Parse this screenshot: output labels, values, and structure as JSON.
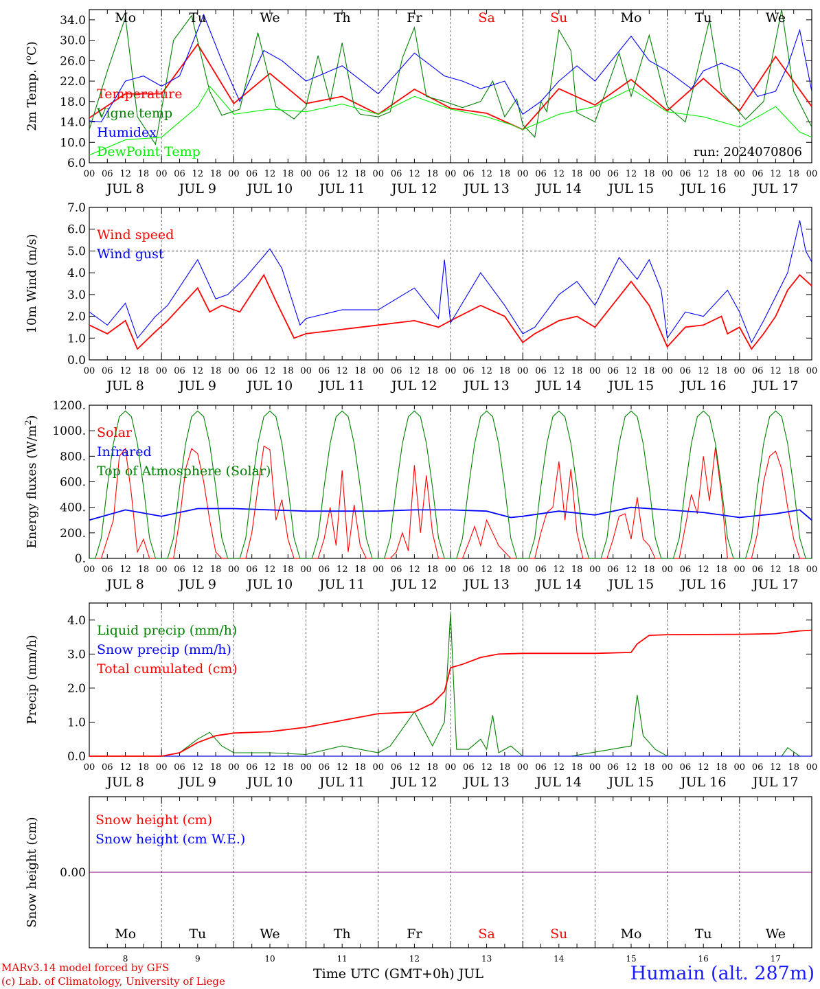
{
  "chart_data": [
    {
      "type": "line",
      "ylabel_text": "2m Temp. (",
      "ylabel_unit": "o",
      "ylabel_tail": "C)",
      "ylim": [
        6,
        36
      ],
      "yticks": [
        "6.0",
        "10.0",
        "14.0",
        "18.0",
        "22.0",
        "26.0",
        "30.0",
        "34.0"
      ],
      "annotation": "run: 2024070806",
      "weekday_row": "top",
      "series": [
        {
          "name": "Temperature",
          "color": "#ff0000",
          "x": [
            0,
            12,
            24,
            36,
            48,
            60,
            72,
            84,
            96,
            108,
            120,
            132,
            144,
            156,
            168,
            180,
            192,
            204,
            216,
            228,
            240
          ],
          "y": [
            14.8,
            19.5,
            19.5,
            29.2,
            17.6,
            23.5,
            17.6,
            19.0,
            15.5,
            20.4,
            16.7,
            15.7,
            12.5,
            20.5,
            17.3,
            22.3,
            16.2,
            22.5,
            16.2,
            26.8,
            17.0
          ]
        },
        {
          "name": "Vigne temp",
          "color": "#008000",
          "x": [
            0,
            6,
            12,
            16,
            22,
            28,
            34,
            40,
            44,
            50,
            56,
            62,
            68,
            72,
            76,
            80,
            84,
            88,
            90,
            96,
            100,
            104,
            108,
            112,
            118,
            124,
            130,
            134,
            138,
            142,
            144,
            148,
            150,
            152,
            156,
            160,
            162,
            168,
            176,
            180,
            186,
            192,
            198,
            206,
            210,
            218,
            224,
            230,
            234,
            240
          ],
          "y": [
            12.5,
            24.0,
            34.5,
            15.0,
            9.6,
            30.0,
            34.8,
            20.0,
            15.3,
            16.5,
            31.5,
            17.0,
            14.6,
            17.0,
            27.0,
            18.0,
            29.5,
            17.0,
            15.5,
            15.0,
            16.0,
            26.5,
            32.5,
            19.0,
            18.0,
            16.8,
            18.0,
            22.0,
            15.0,
            18.5,
            13.5,
            11.0,
            18.0,
            16.0,
            32.0,
            28.0,
            15.8,
            14.0,
            27.5,
            19.0,
            31.0,
            17.0,
            14.0,
            34.0,
            20.0,
            14.5,
            18.0,
            36.5,
            20.0,
            13.0
          ]
        },
        {
          "name": "Humidex",
          "color": "#0000ff",
          "x": [
            0,
            4,
            12,
            18,
            24,
            30,
            38,
            44,
            50,
            58,
            64,
            72,
            84,
            96,
            108,
            118,
            124,
            130,
            138,
            144,
            150,
            156,
            162,
            168,
            180,
            186,
            192,
            200,
            204,
            210,
            216,
            222,
            228,
            232,
            236,
            240
          ],
          "y": [
            14.2,
            14.0,
            22.0,
            23.0,
            21.0,
            23.0,
            35.0,
            26.0,
            18.0,
            28.0,
            26.0,
            22.0,
            25.0,
            19.5,
            27.5,
            23.0,
            22.0,
            20.5,
            22.0,
            15.5,
            18.0,
            22.0,
            25.0,
            22.0,
            30.8,
            26.0,
            24.0,
            20.5,
            24.0,
            25.5,
            24.0,
            19.0,
            20.0,
            25.0,
            32.0,
            20.0
          ]
        },
        {
          "name": "DewPoint Temp",
          "color": "#00ee00",
          "x": [
            0,
            12,
            24,
            36,
            40,
            48,
            60,
            72,
            84,
            96,
            108,
            120,
            132,
            140,
            144,
            156,
            168,
            180,
            192,
            204,
            216,
            228,
            236,
            240
          ],
          "y": [
            7.5,
            10.5,
            11.0,
            17.0,
            21.0,
            15.5,
            16.5,
            16.0,
            17.5,
            15.5,
            19.0,
            16.5,
            15.0,
            13.5,
            12.5,
            15.5,
            17.0,
            20.5,
            16.0,
            15.0,
            13.0,
            17.0,
            12.0,
            11.0
          ]
        }
      ]
    },
    {
      "type": "line",
      "ylabel": "10m Wind (m/s)",
      "ylim": [
        0,
        7
      ],
      "yticks": [
        "0.0",
        "1.0",
        "2.0",
        "3.0",
        "4.0",
        "5.0",
        "6.0",
        "7.0"
      ],
      "reference_line": 5.0,
      "series": [
        {
          "name": "Wind speed",
          "color": "#ff0000",
          "x": [
            0,
            6,
            12,
            16,
            22,
            26,
            36,
            40,
            44,
            50,
            58,
            62,
            68,
            72,
            84,
            96,
            108,
            116,
            120,
            130,
            138,
            144,
            148,
            156,
            162,
            168,
            180,
            186,
            192,
            198,
            204,
            210,
            212,
            216,
            220,
            224,
            228,
            232,
            236,
            240
          ],
          "y": [
            1.6,
            1.2,
            1.8,
            0.5,
            1.3,
            1.8,
            3.3,
            2.2,
            2.5,
            2.2,
            3.9,
            2.7,
            1.0,
            1.2,
            1.4,
            1.6,
            1.8,
            1.5,
            1.8,
            2.5,
            2.0,
            0.8,
            1.2,
            1.8,
            2.0,
            1.5,
            3.6,
            2.5,
            0.6,
            1.5,
            1.6,
            2.0,
            1.2,
            1.5,
            0.5,
            1.2,
            2.0,
            3.2,
            3.9,
            3.4
          ]
        },
        {
          "name": "Wind gust",
          "color": "#0000ff",
          "x": [
            0,
            6,
            12,
            16,
            22,
            26,
            36,
            42,
            46,
            52,
            60,
            64,
            70,
            72,
            84,
            96,
            108,
            116,
            118,
            120,
            130,
            138,
            144,
            148,
            156,
            162,
            168,
            176,
            182,
            186,
            190,
            192,
            198,
            204,
            212,
            216,
            220,
            224,
            228,
            232,
            236,
            238,
            240
          ],
          "y": [
            2.2,
            1.6,
            2.6,
            1.0,
            2.0,
            2.5,
            4.6,
            2.8,
            3.0,
            3.8,
            5.1,
            4.2,
            1.6,
            1.9,
            2.3,
            2.3,
            3.3,
            1.9,
            4.6,
            1.7,
            4.0,
            2.5,
            1.2,
            1.5,
            3.0,
            3.6,
            2.5,
            4.7,
            3.7,
            4.6,
            3.2,
            1.0,
            2.2,
            2.0,
            3.2,
            2.2,
            0.8,
            1.8,
            2.9,
            4.0,
            6.4,
            5.0,
            4.5
          ]
        }
      ]
    },
    {
      "type": "line",
      "ylabel_text": "Energy fluxes (W/m",
      "ylabel_unit": "2",
      "ylabel_tail": ")",
      "ylim": [
        0,
        1200
      ],
      "yticks": [
        "0.",
        "200.",
        "400.",
        "600.",
        "800.",
        "1000.",
        "1200."
      ],
      "series": [
        {
          "name": "Solar",
          "color": "#ff0000",
          "x": [
            0,
            4,
            8,
            10,
            12,
            14,
            16,
            18,
            20,
            24,
            28,
            30,
            32,
            34,
            36,
            38,
            40,
            42,
            44,
            48,
            52,
            54,
            56,
            58,
            60,
            62,
            64,
            66,
            68,
            72,
            76,
            78,
            80,
            82,
            84,
            86,
            88,
            90,
            92,
            96,
            100,
            102,
            104,
            106,
            108,
            110,
            112,
            114,
            116,
            120,
            124,
            126,
            128,
            130,
            132,
            134,
            136,
            138,
            140,
            144,
            148,
            150,
            152,
            154,
            156,
            158,
            160,
            162,
            164,
            168,
            172,
            174,
            176,
            178,
            180,
            182,
            184,
            186,
            188,
            192,
            196,
            198,
            200,
            202,
            204,
            206,
            208,
            210,
            212,
            216,
            220,
            222,
            224,
            226,
            228,
            230,
            232,
            234,
            236,
            240
          ],
          "y": [
            0,
            0,
            300,
            800,
            860,
            500,
            50,
            150,
            0,
            0,
            0,
            300,
            700,
            860,
            820,
            600,
            300,
            50,
            0,
            0,
            0,
            200,
            550,
            880,
            850,
            300,
            460,
            150,
            0,
            0,
            0,
            150,
            400,
            100,
            690,
            50,
            420,
            100,
            0,
            0,
            0,
            50,
            200,
            60,
            730,
            200,
            650,
            200,
            0,
            0,
            0,
            120,
            250,
            100,
            300,
            200,
            100,
            50,
            0,
            0,
            0,
            200,
            360,
            400,
            760,
            300,
            700,
            200,
            0,
            0,
            0,
            150,
            330,
            350,
            150,
            480,
            150,
            100,
            0,
            0,
            0,
            250,
            500,
            350,
            800,
            450,
            870,
            500,
            0,
            0,
            0,
            200,
            600,
            800,
            840,
            700,
            400,
            150,
            0,
            0
          ]
        },
        {
          "name": "Infrared",
          "color": "#0000ff",
          "x": [
            0,
            12,
            24,
            36,
            48,
            60,
            72,
            84,
            96,
            108,
            120,
            132,
            140,
            144,
            156,
            168,
            180,
            192,
            204,
            216,
            228,
            236,
            240
          ],
          "y": [
            300,
            380,
            330,
            390,
            390,
            380,
            370,
            370,
            370,
            380,
            380,
            370,
            320,
            330,
            370,
            340,
            400,
            380,
            360,
            320,
            350,
            380,
            300
          ]
        },
        {
          "name": "Top of Atmosphere (Solar)",
          "color": "#008000",
          "x": [
            0,
            2,
            4,
            6,
            8,
            10,
            12,
            14,
            16,
            18,
            20,
            22,
            24
          ],
          "y": [
            0,
            0,
            160,
            560,
            900,
            1110,
            1155,
            1110,
            900,
            560,
            160,
            0,
            0
          ],
          "period": 24
        }
      ]
    },
    {
      "type": "line",
      "ylabel": "Precip (mm/h)",
      "ylim": [
        0,
        4.5
      ],
      "yticks": [
        "0.0",
        "1.0",
        "2.0",
        "3.0",
        "4.0"
      ],
      "series": [
        {
          "name": "Liquid precip (mm/h)",
          "color": "#008000",
          "x": [
            0,
            24,
            30,
            36,
            40,
            44,
            48,
            60,
            72,
            84,
            96,
            100,
            108,
            114,
            118,
            120,
            122,
            126,
            130,
            132,
            134,
            136,
            140,
            144,
            160,
            180,
            182,
            184,
            188,
            192,
            230,
            232,
            236,
            240
          ],
          "y": [
            0,
            0,
            0.1,
            0.5,
            0.7,
            0.3,
            0.1,
            0.1,
            0.05,
            0.3,
            0.1,
            0.3,
            1.3,
            0.3,
            1.0,
            4.2,
            0.2,
            0.2,
            0.5,
            0.2,
            1.2,
            0.1,
            0.3,
            0,
            0,
            0.3,
            1.8,
            0.6,
            0.2,
            0,
            0,
            0.25,
            0,
            0
          ]
        },
        {
          "name": "Snow precip (mm/h)",
          "color": "#0000ff",
          "x": [
            0,
            240
          ],
          "y": [
            0,
            0
          ]
        },
        {
          "name": "Total cumulated (cm)",
          "color": "#ff0000",
          "x": [
            0,
            24,
            30,
            36,
            42,
            48,
            60,
            72,
            84,
            96,
            108,
            114,
            118,
            120,
            124,
            130,
            136,
            144,
            168,
            180,
            182,
            186,
            192,
            216,
            228,
            236,
            240
          ],
          "y": [
            0,
            0,
            0.1,
            0.4,
            0.6,
            0.68,
            0.72,
            0.85,
            1.05,
            1.25,
            1.3,
            1.55,
            1.9,
            2.6,
            2.7,
            2.9,
            3.0,
            3.02,
            3.02,
            3.05,
            3.3,
            3.55,
            3.57,
            3.58,
            3.6,
            3.68,
            3.7
          ]
        }
      ]
    },
    {
      "type": "line",
      "ylabel": "Snow height (cm)",
      "ylim": [
        -1,
        1
      ],
      "yticks": [
        "0.00"
      ],
      "weekday_row": "bottom",
      "series": [
        {
          "name": "Snow height (cm)",
          "color": "#ff0000",
          "x": [
            0,
            240
          ],
          "y": [
            0,
            0
          ]
        },
        {
          "name": "Snow height (cm W.E.)",
          "color": "#0000ff",
          "x": [
            0,
            240
          ],
          "y": [
            0,
            0
          ]
        }
      ]
    }
  ],
  "weekdays": [
    "Mo",
    "Tu",
    "We",
    "Th",
    "Fr",
    "Sa",
    "Su",
    "Mo",
    "Tu",
    "We"
  ],
  "weekday_colors": [
    "#000000",
    "#000000",
    "#000000",
    "#000000",
    "#000000",
    "#ff0000",
    "#ff0000",
    "#000000",
    "#000000",
    "#000000"
  ],
  "hour_ticks": [
    "00",
    "06",
    "12",
    "18"
  ],
  "date_labels": [
    "JUL  8",
    "JUL  9",
    "JUL 10",
    "JUL 11",
    "JUL 12",
    "JUL 13",
    "JUL 14",
    "JUL 15",
    "JUL 16",
    "JUL 17"
  ],
  "day_numbers": [
    "8",
    "9",
    "10",
    "11",
    "12",
    "13",
    "14",
    "15",
    "16",
    "17"
  ],
  "x_final_tick": "00",
  "footer": {
    "credit_line1": "MARv3.14 model forced by GFS",
    "credit_line2": "(c) Lab. of Climatology, University of Liege",
    "xlabel": "Time UTC (GMT+0h) JUL",
    "station": "Humain (alt. 287m)"
  },
  "colors": {
    "snow_overlay": "#800080"
  }
}
